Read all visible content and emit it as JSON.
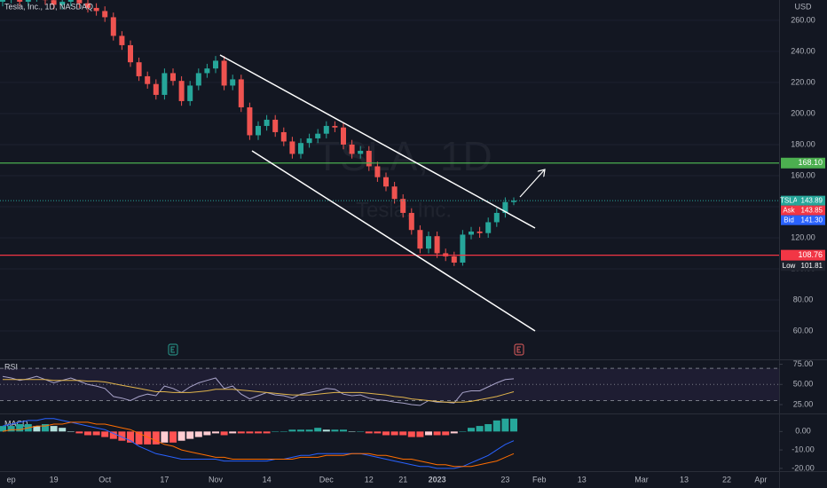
{
  "header": "Tesla, Inc., 1D, NASDAQ",
  "currency": "USD",
  "watermark": {
    "symbol_interval": "TSLA, 1D",
    "name": "Tesla, Inc."
  },
  "chart_data": [
    {
      "type": "candlestick",
      "categories": [
        null,
        "ep",
        null,
        null,
        null,
        null,
        "19",
        null,
        null,
        null,
        null,
        null,
        "Oct",
        null,
        null,
        null,
        null,
        null,
        null,
        "17",
        null,
        null,
        null,
        null,
        null,
        "Nov",
        null,
        null,
        null,
        null,
        null,
        "14",
        null,
        null,
        null,
        null,
        null,
        null,
        "Dec",
        null,
        null,
        null,
        null,
        "12",
        null,
        null,
        null,
        "21",
        null,
        null,
        null,
        "2023",
        null,
        null,
        null,
        null,
        null,
        null,
        null,
        "23",
        null,
        null,
        null,
        "Feb",
        null,
        null,
        null,
        null,
        "13",
        null,
        null,
        null,
        null,
        null,
        null,
        "Mar",
        null,
        null,
        null,
        null,
        "13",
        null,
        null,
        null,
        null,
        "22",
        null,
        null,
        null,
        "Apr",
        null
      ],
      "open": [
        272,
        274,
        276,
        272,
        275,
        277,
        273,
        270,
        272,
        275,
        271,
        268,
        266,
        262,
        250,
        244,
        233,
        224,
        219,
        212,
        226,
        221,
        208,
        218,
        226,
        229,
        234,
        218,
        222,
        204,
        186,
        192,
        196,
        188,
        182,
        174,
        181,
        184,
        187,
        192,
        191,
        180,
        174,
        176,
        166,
        159,
        153,
        145,
        136,
        125,
        113,
        121,
        110,
        108,
        104,
        122,
        124,
        123,
        130,
        136,
        143,
        null,
        null,
        null,
        null,
        null,
        null,
        null,
        null,
        null,
        null,
        null,
        null,
        null,
        null,
        null,
        null,
        null,
        null,
        null,
        null,
        null,
        null,
        null,
        null,
        null,
        null,
        null,
        null,
        null,
        null
      ],
      "high": [
        277,
        279,
        279,
        278,
        280,
        280,
        276,
        275,
        278,
        278,
        274,
        271,
        269,
        265,
        253,
        247,
        236,
        227,
        222,
        229,
        229,
        224,
        221,
        229,
        232,
        237,
        237,
        225,
        225,
        207,
        195,
        199,
        199,
        191,
        185,
        184,
        187,
        190,
        195,
        195,
        194,
        183,
        179,
        179,
        169,
        162,
        156,
        148,
        139,
        128,
        124,
        124,
        113,
        111,
        125,
        127,
        127,
        133,
        139,
        146,
        146,
        null,
        null,
        null,
        null,
        null,
        null,
        null,
        null,
        null,
        null,
        null,
        null,
        null,
        null,
        null,
        null,
        null,
        null,
        null,
        null,
        null,
        null,
        null,
        null,
        null,
        null,
        null,
        null,
        null,
        null
      ],
      "low": [
        269,
        271,
        269,
        269,
        272,
        270,
        267,
        267,
        269,
        268,
        265,
        263,
        259,
        247,
        241,
        230,
        221,
        216,
        209,
        209,
        218,
        205,
        205,
        215,
        223,
        226,
        215,
        215,
        201,
        183,
        183,
        189,
        185,
        179,
        171,
        171,
        178,
        181,
        184,
        188,
        177,
        171,
        171,
        163,
        156,
        150,
        142,
        133,
        122,
        110,
        110,
        107,
        105,
        101.81,
        102,
        119,
        120,
        120,
        127,
        133,
        141,
        null,
        null,
        null,
        null,
        null,
        null,
        null,
        null,
        null,
        null,
        null,
        null,
        null,
        null,
        null,
        null,
        null,
        null,
        null,
        null,
        null,
        null,
        null,
        null,
        null,
        null,
        null,
        null,
        null,
        null
      ],
      "close": [
        274,
        276,
        272,
        275,
        277,
        273,
        270,
        272,
        275,
        271,
        268,
        266,
        262,
        250,
        244,
        233,
        224,
        219,
        212,
        226,
        221,
        208,
        218,
        226,
        229,
        234,
        218,
        222,
        204,
        186,
        192,
        196,
        188,
        182,
        174,
        181,
        184,
        187,
        192,
        191,
        180,
        174,
        176,
        166,
        159,
        153,
        145,
        136,
        125,
        113,
        121,
        110,
        108,
        104,
        122,
        124,
        123,
        130,
        136,
        143,
        143.89,
        null,
        null,
        null,
        null,
        null,
        null,
        null,
        null,
        null,
        null,
        null,
        null,
        null,
        null,
        null,
        null,
        null,
        null,
        null,
        null,
        null,
        null,
        null,
        null,
        null,
        null,
        null,
        null,
        null,
        null
      ],
      "up_color": "#26a69a",
      "down_color": "#ef5350",
      "ylim": [
        41.7,
        273.1
      ],
      "yticks": [
        {
          "value": 60,
          "label": "60.00"
        },
        {
          "value": 80,
          "label": "80.00"
        },
        {
          "value": 100,
          "label": "100.00"
        },
        {
          "value": 120,
          "label": "120.00"
        },
        {
          "value": 140,
          "label": "140.00"
        },
        {
          "value": 160,
          "label": "160.00"
        },
        {
          "value": 180,
          "label": "180.00"
        },
        {
          "value": 200,
          "label": "200.00"
        },
        {
          "value": 220,
          "label": "220.00"
        },
        {
          "value": 240,
          "label": "240.00"
        },
        {
          "value": 260,
          "label": "260.00"
        }
      ],
      "levels": [
        {
          "value": 168.1,
          "label": "168.10",
          "color": "#4caf50"
        },
        {
          "value": 108.76,
          "label": "108.76",
          "color": "#f23645"
        }
      ],
      "price_labels": [
        {
          "name": "TSLA",
          "value": 143.89,
          "color": "#26a69a"
        },
        {
          "name": "Ask",
          "value": 143.85,
          "color": "#f23645"
        },
        {
          "name": "Bid",
          "value": {
            "value": 141.3,
            "label": "141.30"
          },
          "color": "#2962ff"
        },
        {
          "name": "Low",
          "value": 101.81,
          "color": "#1e222d"
        }
      ]
    },
    {
      "type": "rsi",
      "title": "RSI",
      "series": [
        {
          "color": "#a8a3c9",
          "values": [
            60,
            58,
            55,
            57,
            60,
            56,
            52,
            55,
            58,
            54,
            50,
            48,
            45,
            35,
            33,
            30,
            35,
            38,
            36,
            48,
            45,
            40,
            47,
            52,
            55,
            58,
            45,
            48,
            38,
            32,
            36,
            40,
            37,
            36,
            33,
            38,
            40,
            42,
            45,
            44,
            38,
            36,
            37,
            33,
            31,
            30,
            28,
            27,
            25,
            24,
            30,
            28,
            28,
            27,
            40,
            42,
            42,
            47,
            52,
            56,
            57,
            null,
            null,
            null,
            null,
            null,
            null,
            null,
            null,
            null,
            null,
            null,
            null,
            null,
            null,
            null,
            null,
            null,
            null,
            null,
            null,
            null,
            null,
            null,
            null,
            null,
            null,
            null,
            null,
            null,
            null
          ]
        },
        {
          "color": "#e0b44c",
          "values": [
            56,
            56,
            56,
            56,
            56,
            56,
            55,
            55,
            55,
            55,
            54,
            54,
            53,
            51,
            49,
            47,
            45,
            43,
            41,
            41,
            40,
            40,
            40,
            41,
            42,
            44,
            44,
            44,
            43,
            42,
            41,
            40,
            39,
            38,
            37,
            37,
            37,
            38,
            39,
            40,
            40,
            40,
            40,
            39,
            38,
            37,
            35,
            34,
            32,
            31,
            30,
            29,
            28,
            28,
            28,
            29,
            31,
            33,
            35,
            38,
            41,
            null,
            null,
            null,
            null,
            null,
            null,
            null,
            null,
            null,
            null,
            null,
            null,
            null,
            null,
            null,
            null,
            null,
            null,
            null,
            null,
            null,
            null,
            null,
            null,
            null,
            null,
            null,
            null,
            null,
            null
          ]
        }
      ],
      "bands": [
        70,
        50,
        30
      ],
      "ylim": [
        14,
        80
      ],
      "yticks": [
        {
          "value": 25,
          "label": "25.00"
        },
        {
          "value": 50,
          "label": "50.00"
        },
        {
          "value": 75,
          "label": "75.00"
        }
      ]
    },
    {
      "type": "macd",
      "title": "MACD",
      "histogram": [
        3,
        3,
        4,
        4,
        3,
        4,
        3,
        2,
        0,
        -1,
        -2,
        -2,
        -3,
        -4,
        -5,
        -6,
        -7,
        -7,
        -7,
        -6,
        -6,
        -5,
        -4,
        -3,
        -2,
        -1,
        -2,
        -1,
        -1,
        -1,
        -1,
        -1,
        0,
        0,
        1,
        1,
        1,
        2,
        1,
        1,
        1,
        0,
        0,
        -1,
        -1,
        -2,
        -2,
        -2,
        -3,
        -3,
        -2,
        -2,
        -2,
        -1,
        0,
        2,
        3,
        4,
        6,
        7,
        7,
        null,
        null,
        null,
        null,
        null,
        null,
        null,
        null,
        null,
        null,
        null,
        null,
        null,
        null,
        null,
        null,
        null,
        null,
        null,
        null,
        null,
        null,
        null,
        null,
        null,
        null,
        null,
        null,
        null,
        null
      ],
      "histogram_colors": {
        "up": "#26a69a",
        "up_fading": "#b2dfdb",
        "down": "#ff5252",
        "down_fading": "#ffcdd2"
      },
      "series": [
        {
          "color": "#2962ff",
          "values": [
            3,
            4,
            5,
            6,
            6,
            7,
            7,
            6,
            5,
            4,
            3,
            2,
            1,
            -1,
            -3,
            -5,
            -8,
            -10,
            -12,
            -13,
            -14,
            -15,
            -15,
            -15,
            -15,
            -15,
            -16,
            -16,
            -16,
            -16,
            -16,
            -16,
            -15,
            -15,
            -14,
            -13,
            -13,
            -12,
            -12,
            -12,
            -12,
            -12,
            -12,
            -13,
            -14,
            -15,
            -16,
            -17,
            -18,
            -19,
            -19,
            -20,
            -20,
            -20,
            -19,
            -17,
            -15,
            -13,
            -10,
            -7,
            -5,
            null,
            null,
            null,
            null,
            null,
            null,
            null,
            null,
            null,
            null,
            null,
            null,
            null,
            null,
            null,
            null,
            null,
            null,
            null,
            null,
            null,
            null,
            null,
            null,
            null,
            null,
            null,
            null,
            null,
            null
          ]
        },
        {
          "color": "#ff6d00",
          "values": [
            0,
            1,
            1,
            2,
            3,
            3,
            4,
            4,
            5,
            5,
            5,
            4,
            4,
            3,
            2,
            1,
            -1,
            -3,
            -5,
            -7,
            -8,
            -10,
            -11,
            -12,
            -13,
            -14,
            -14,
            -15,
            -15,
            -15,
            -15,
            -15,
            -15,
            -15,
            -15,
            -14,
            -14,
            -14,
            -13,
            -13,
            -13,
            -12,
            -12,
            -12,
            -13,
            -13,
            -14,
            -15,
            -15,
            -16,
            -17,
            -18,
            -18,
            -19,
            -19,
            -19,
            -18,
            -17,
            -16,
            -14,
            -12,
            null,
            null,
            null,
            null,
            null,
            null,
            null,
            null,
            null,
            null,
            null,
            null,
            null,
            null,
            null,
            null,
            null,
            null,
            null,
            null,
            null,
            null,
            null,
            null,
            null,
            null,
            null,
            null,
            null,
            null
          ]
        }
      ],
      "ylim": [
        -21.5,
        9.3
      ],
      "yticks": [
        {
          "value": -20,
          "label": "-20.00"
        },
        {
          "value": -10,
          "label": "-10.00"
        },
        {
          "value": 0,
          "label": "0.00"
        }
      ]
    }
  ]
}
